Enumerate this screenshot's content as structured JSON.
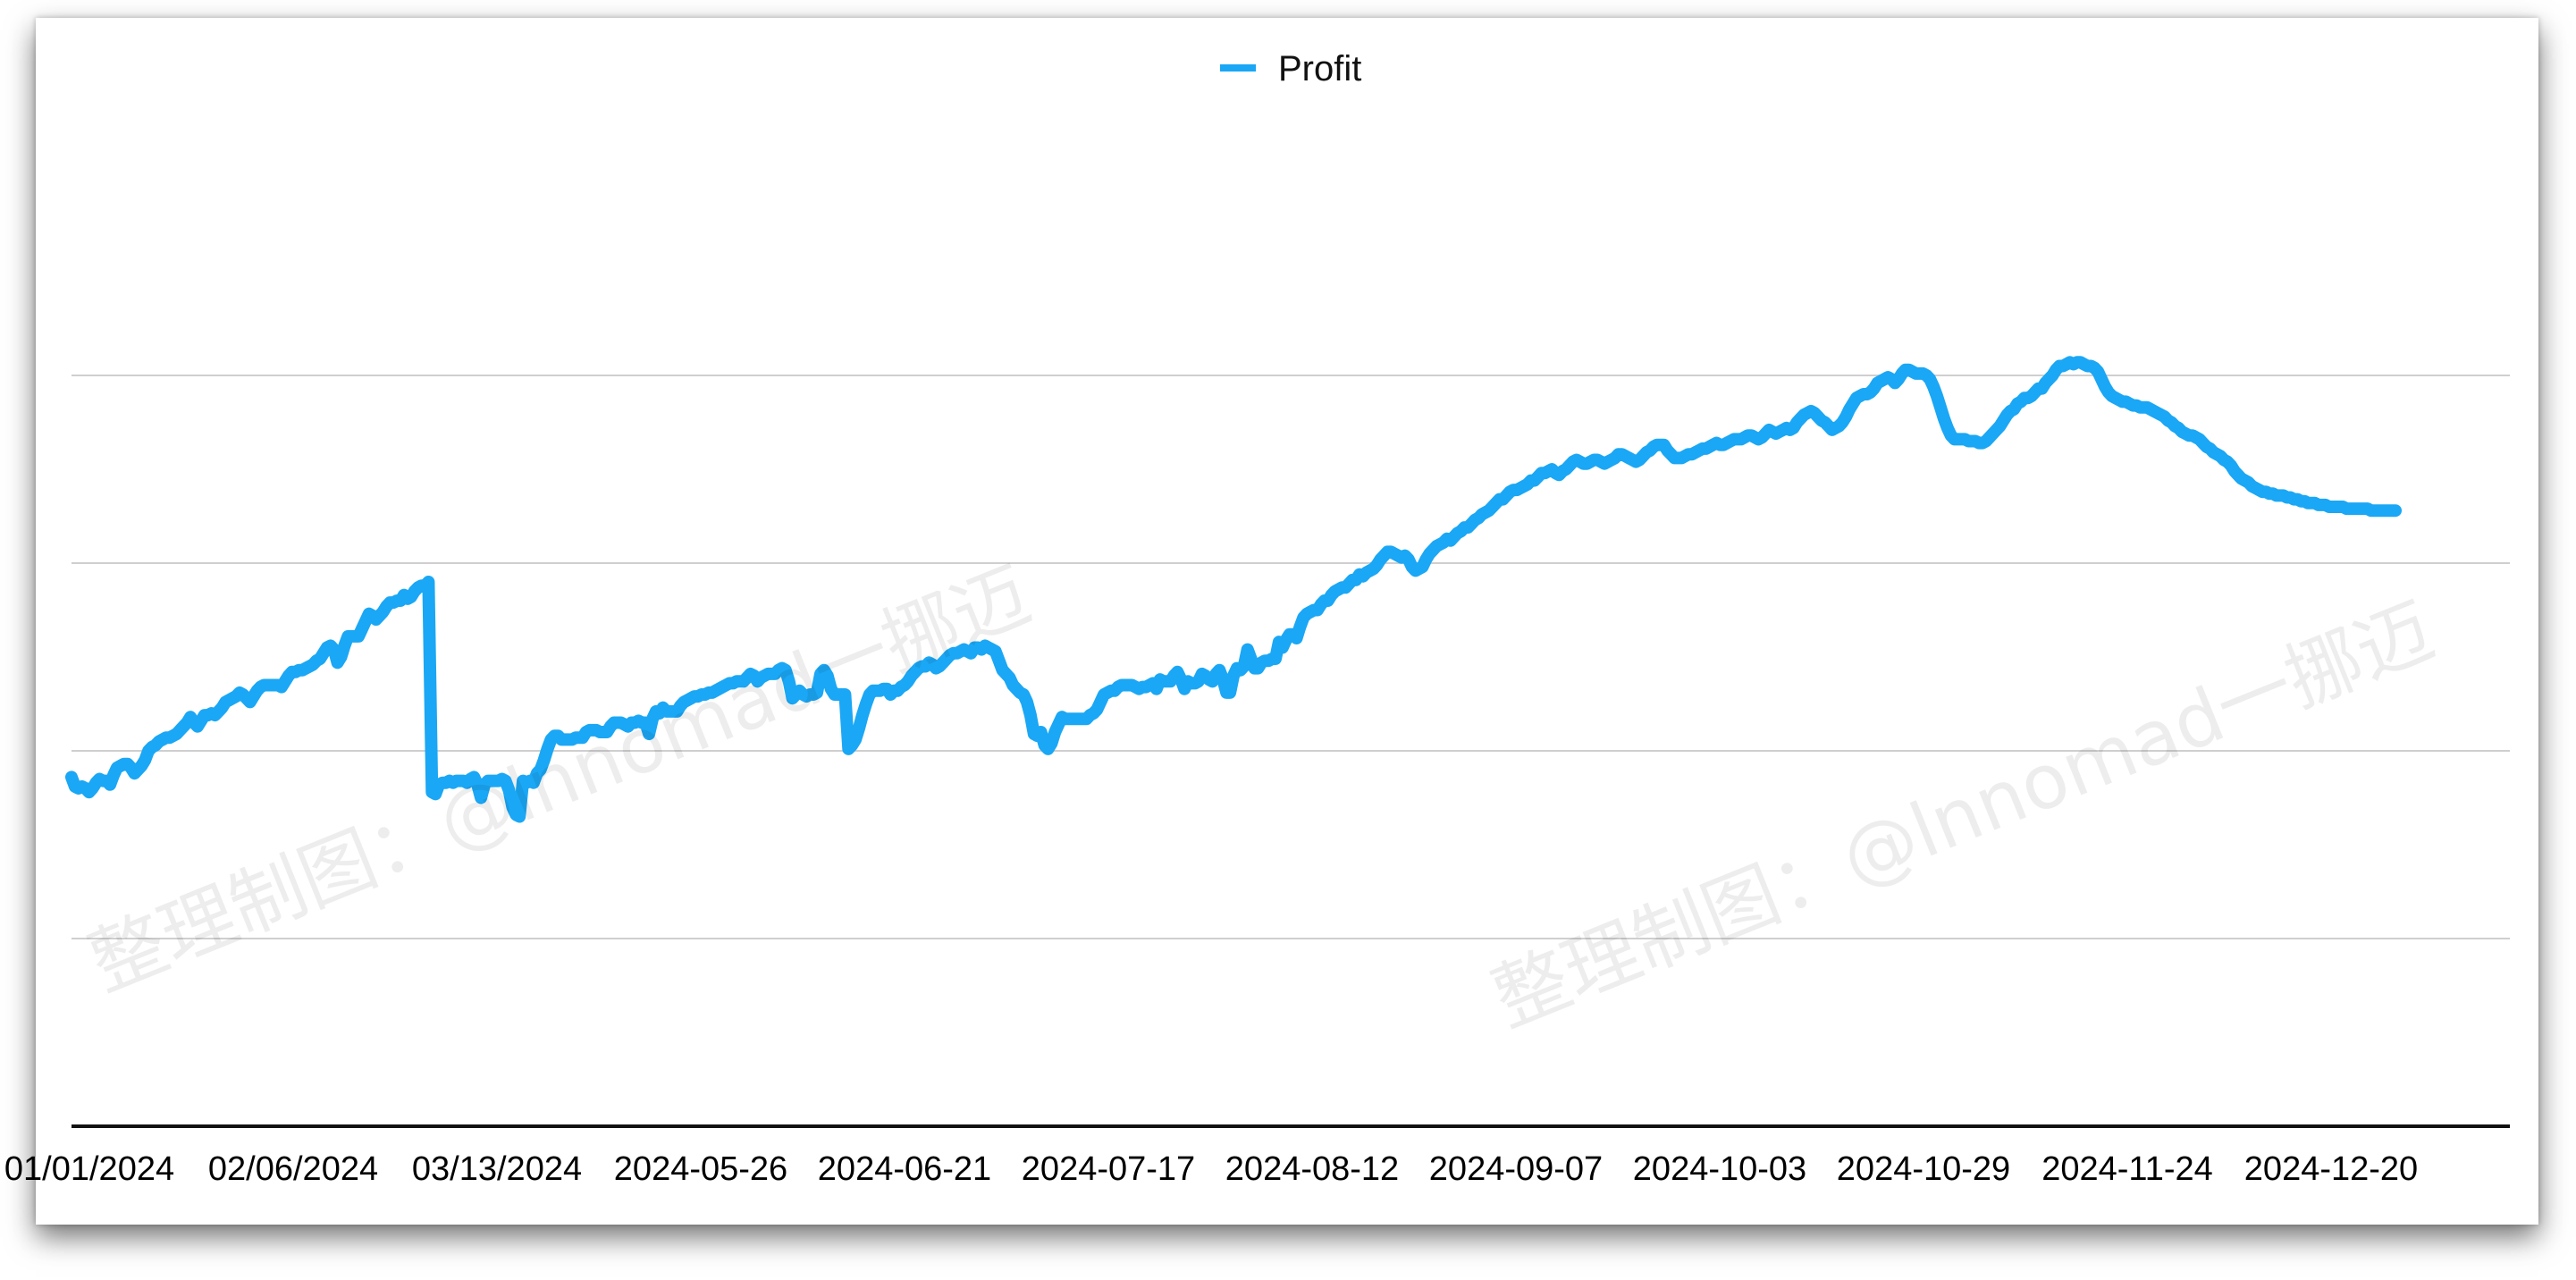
{
  "colors": {
    "series": "#1aa7f5",
    "grid": "#cfcfcf",
    "axis": "#111111"
  },
  "watermark": {
    "text": "整理制图：@lnnomad一挪迈"
  },
  "chart_data": {
    "type": "line",
    "legend": {
      "position": "top-center",
      "entries": [
        "Profit"
      ]
    },
    "grid": true,
    "ylim": [
      0,
      5
    ],
    "y_gridlines": [
      1,
      2,
      3,
      4
    ],
    "x_tick_labels": [
      "01/01/2024",
      "02/06/2024",
      "03/13/2024",
      "2024-05-26",
      "2024-06-21",
      "2024-07-17",
      "2024-08-12",
      "2024-09-07",
      "2024-10-03",
      "2024-10-29",
      "2024-11-24",
      "2024-12-20"
    ],
    "series": [
      {
        "name": "Profit",
        "y": [
          1.86,
          1.81,
          1.8,
          1.81,
          1.8,
          1.78,
          1.8,
          1.83,
          1.85,
          1.84,
          1.84,
          1.82,
          1.87,
          1.91,
          1.92,
          1.93,
          1.93,
          1.91,
          1.88,
          1.9,
          1.92,
          1.95,
          2.0,
          2.02,
          2.03,
          2.05,
          2.06,
          2.07,
          2.07,
          2.08,
          2.09,
          2.11,
          2.13,
          2.15,
          2.18,
          2.15,
          2.13,
          2.16,
          2.19,
          2.19,
          2.2,
          2.19,
          2.21,
          2.23,
          2.26,
          2.27,
          2.28,
          2.29,
          2.31,
          2.3,
          2.28,
          2.26,
          2.29,
          2.32,
          2.34,
          2.35,
          2.35,
          2.35,
          2.35,
          2.35,
          2.34,
          2.37,
          2.4,
          2.42,
          2.42,
          2.43,
          2.43,
          2.44,
          2.45,
          2.46,
          2.48,
          2.49,
          2.52,
          2.55,
          2.56,
          2.54,
          2.47,
          2.5,
          2.56,
          2.61,
          2.61,
          2.61,
          2.61,
          2.65,
          2.69,
          2.73,
          2.72,
          2.7,
          2.72,
          2.74,
          2.77,
          2.79,
          2.79,
          2.8,
          2.8,
          2.83,
          2.81,
          2.82,
          2.85,
          2.87,
          2.88,
          2.88,
          2.9,
          1.78,
          1.77,
          1.82,
          1.83,
          1.83,
          1.84,
          1.83,
          1.84,
          1.84,
          1.84,
          1.83,
          1.85,
          1.86,
          1.82,
          1.75,
          1.82,
          1.84,
          1.84,
          1.84,
          1.84,
          1.85,
          1.84,
          1.79,
          1.7,
          1.66,
          1.65,
          1.84,
          1.83,
          1.84,
          1.83,
          1.88,
          1.9,
          1.95,
          2.01,
          2.06,
          2.08,
          2.08,
          2.06,
          2.06,
          2.06,
          2.06,
          2.07,
          2.07,
          2.07,
          2.1,
          2.11,
          2.11,
          2.11,
          2.1,
          2.1,
          2.1,
          2.13,
          2.15,
          2.15,
          2.15,
          2.14,
          2.13,
          2.15,
          2.15,
          2.16,
          2.15,
          2.15,
          2.09,
          2.17,
          2.21,
          2.2,
          2.23,
          2.21,
          2.21,
          2.21,
          2.21,
          2.24,
          2.26,
          2.27,
          2.28,
          2.29,
          2.29,
          2.3,
          2.3,
          2.31,
          2.31,
          2.32,
          2.33,
          2.34,
          2.35,
          2.36,
          2.36,
          2.37,
          2.37,
          2.37,
          2.39,
          2.41,
          2.4,
          2.37,
          2.39,
          2.4,
          2.41,
          2.41,
          2.41,
          2.43,
          2.44,
          2.43,
          2.37,
          2.28,
          2.3,
          2.32,
          2.3,
          2.29,
          2.3,
          2.3,
          2.31,
          2.41,
          2.43,
          2.4,
          2.33,
          2.3,
          2.3,
          2.3,
          2.3,
          2.01,
          2.03,
          2.06,
          2.12,
          2.19,
          2.25,
          2.3,
          2.32,
          2.32,
          2.32,
          2.33,
          2.33,
          2.3,
          2.32,
          2.32,
          2.34,
          2.35,
          2.37,
          2.4,
          2.42,
          2.44,
          2.45,
          2.45,
          2.47,
          2.46,
          2.44,
          2.45,
          2.47,
          2.49,
          2.51,
          2.52,
          2.52,
          2.53,
          2.54,
          2.53,
          2.52,
          2.55,
          2.55,
          2.54,
          2.56,
          2.55,
          2.54,
          2.53,
          2.48,
          2.43,
          2.41,
          2.39,
          2.35,
          2.33,
          2.31,
          2.3,
          2.26,
          2.19,
          2.09,
          2.08,
          2.1,
          2.03,
          2.01,
          2.04,
          2.1,
          2.14,
          2.18,
          2.17,
          2.17,
          2.17,
          2.17,
          2.17,
          2.17,
          2.17,
          2.19,
          2.2,
          2.22,
          2.26,
          2.3,
          2.31,
          2.32,
          2.32,
          2.34,
          2.35,
          2.35,
          2.35,
          2.35,
          2.34,
          2.33,
          2.34,
          2.34,
          2.35,
          2.36,
          2.33,
          2.38,
          2.37,
          2.37,
          2.37,
          2.4,
          2.42,
          2.38,
          2.33,
          2.37,
          2.36,
          2.36,
          2.37,
          2.41,
          2.4,
          2.38,
          2.37,
          2.41,
          2.43,
          2.38,
          2.31,
          2.31,
          2.4,
          2.44,
          2.43,
          2.45,
          2.54,
          2.49,
          2.44,
          2.44,
          2.47,
          2.48,
          2.48,
          2.49,
          2.49,
          2.58,
          2.55,
          2.59,
          2.62,
          2.62,
          2.6,
          2.66,
          2.71,
          2.73,
          2.74,
          2.75,
          2.75,
          2.78,
          2.8,
          2.8,
          2.83,
          2.85,
          2.86,
          2.87,
          2.87,
          2.89,
          2.91,
          2.91,
          2.94,
          2.93,
          2.95,
          2.96,
          2.97,
          2.99,
          3.02,
          3.04,
          3.06,
          3.06,
          3.05,
          3.04,
          3.03,
          3.04,
          3.02,
          2.98,
          2.96,
          2.97,
          2.98,
          3.02,
          3.05,
          3.07,
          3.09,
          3.1,
          3.11,
          3.13,
          3.12,
          3.14,
          3.16,
          3.17,
          3.19,
          3.19,
          3.21,
          3.23,
          3.24,
          3.26,
          3.27,
          3.28,
          3.3,
          3.32,
          3.34,
          3.34,
          3.36,
          3.38,
          3.39,
          3.39,
          3.4,
          3.41,
          3.42,
          3.44,
          3.44,
          3.46,
          3.48,
          3.48,
          3.49,
          3.5,
          3.48,
          3.47,
          3.49,
          3.5,
          3.52,
          3.54,
          3.55,
          3.54,
          3.53,
          3.53,
          3.54,
          3.55,
          3.55,
          3.54,
          3.53,
          3.54,
          3.55,
          3.56,
          3.58,
          3.58,
          3.57,
          3.56,
          3.55,
          3.54,
          3.55,
          3.57,
          3.59,
          3.6,
          3.62,
          3.63,
          3.63,
          3.63,
          3.6,
          3.58,
          3.56,
          3.56,
          3.56,
          3.57,
          3.58,
          3.58,
          3.59,
          3.6,
          3.61,
          3.61,
          3.62,
          3.63,
          3.64,
          3.63,
          3.63,
          3.64,
          3.65,
          3.66,
          3.66,
          3.66,
          3.67,
          3.68,
          3.68,
          3.67,
          3.66,
          3.67,
          3.69,
          3.71,
          3.7,
          3.69,
          3.7,
          3.71,
          3.72,
          3.71,
          3.72,
          3.75,
          3.77,
          3.79,
          3.8,
          3.81,
          3.8,
          3.78,
          3.76,
          3.75,
          3.73,
          3.71,
          3.72,
          3.73,
          3.75,
          3.78,
          3.82,
          3.85,
          3.88,
          3.89,
          3.9,
          3.9,
          3.91,
          3.93,
          3.96,
          3.97,
          3.98,
          3.99,
          3.98,
          3.96,
          3.98,
          4.01,
          4.03,
          4.03,
          4.02,
          4.01,
          4.01,
          4.01,
          4.0,
          3.98,
          3.94,
          3.89,
          3.83,
          3.77,
          3.72,
          3.68,
          3.66,
          3.66,
          3.66,
          3.66,
          3.65,
          3.65,
          3.65,
          3.64,
          3.64,
          3.65,
          3.67,
          3.69,
          3.71,
          3.73,
          3.76,
          3.79,
          3.81,
          3.82,
          3.85,
          3.86,
          3.88,
          3.88,
          3.89,
          3.91,
          3.93,
          3.93,
          3.96,
          3.98,
          4.0,
          4.03,
          4.05,
          4.05,
          4.06,
          4.07,
          4.06,
          4.07,
          4.07,
          4.06,
          4.05,
          4.05,
          4.04,
          4.02,
          3.98,
          3.94,
          3.91,
          3.89,
          3.88,
          3.87,
          3.86,
          3.86,
          3.85,
          3.84,
          3.84,
          3.83,
          3.83,
          3.83,
          3.82,
          3.81,
          3.8,
          3.79,
          3.78,
          3.76,
          3.75,
          3.73,
          3.72,
          3.7,
          3.69,
          3.68,
          3.68,
          3.67,
          3.66,
          3.64,
          3.62,
          3.61,
          3.59,
          3.58,
          3.57,
          3.55,
          3.54,
          3.52,
          3.49,
          3.47,
          3.45,
          3.44,
          3.43,
          3.41,
          3.4,
          3.39,
          3.38,
          3.38,
          3.37,
          3.37,
          3.36,
          3.36,
          3.36,
          3.35,
          3.35,
          3.34,
          3.34,
          3.33,
          3.33,
          3.32,
          3.32,
          3.32,
          3.31,
          3.31,
          3.31,
          3.3,
          3.3,
          3.3,
          3.3,
          3.3,
          3.29,
          3.29,
          3.29,
          3.29,
          3.29,
          3.29,
          3.29,
          3.28,
          3.28,
          3.28,
          3.28,
          3.28,
          3.28,
          3.28,
          3.28
        ]
      }
    ]
  }
}
